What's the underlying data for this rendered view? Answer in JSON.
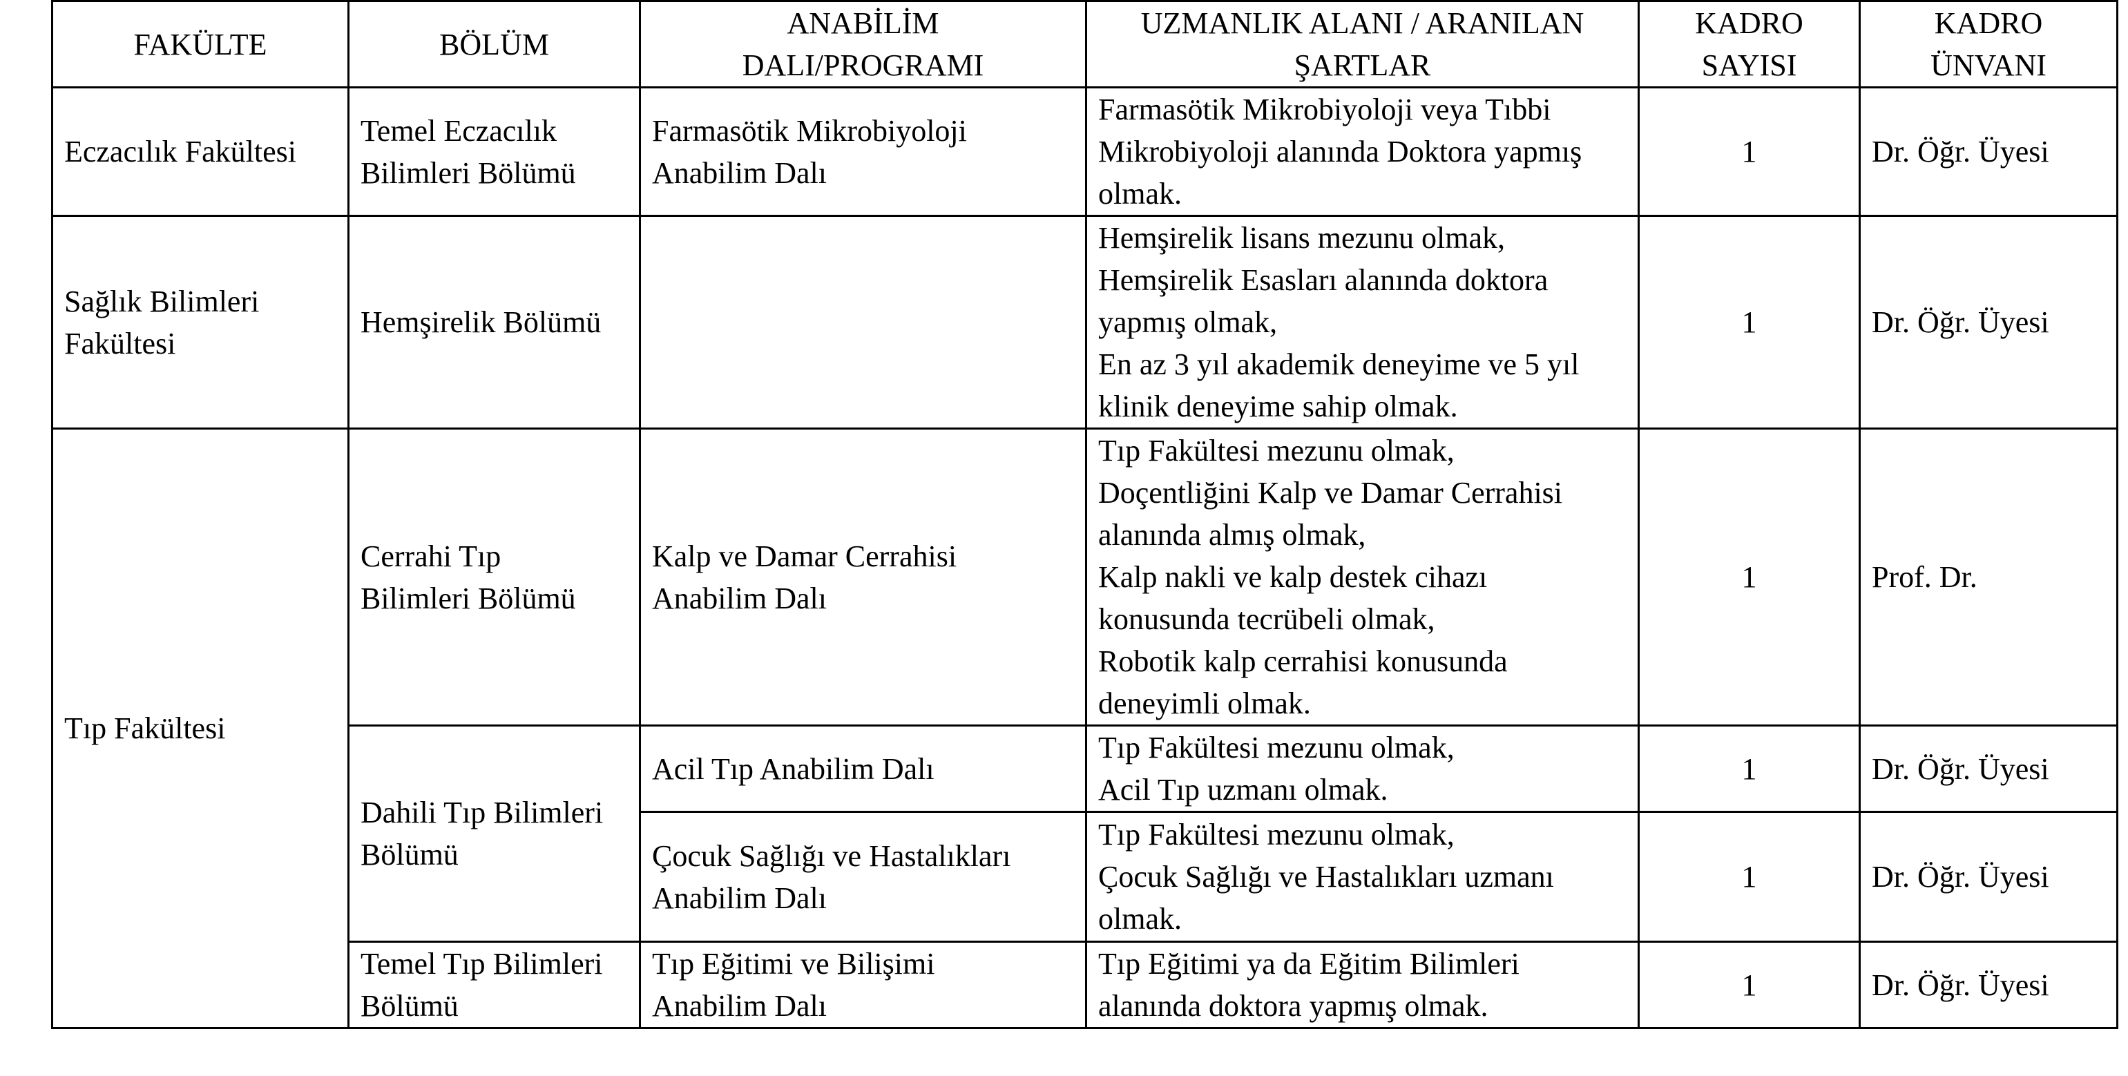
{
  "headers": [
    "FAKÜLTE",
    "BÖLÜM",
    "ANABİLİM DALI/PROGRAMI",
    "UZMANLIK ALANI / ARANILAN ŞARTLAR",
    "KADRO SAYISI",
    "KADRO ÜNVANI"
  ],
  "header_lines": {
    "anabilim": [
      "ANABİLİM",
      "DALI/PROGRAMI"
    ],
    "uzmanlik": [
      "UZMANLIK ALANI / ARANILAN",
      "ŞARTLAR"
    ],
    "sayi": [
      "KADRO",
      "SAYISI"
    ],
    "unvan": [
      "KADRO",
      "ÜNVANI"
    ]
  },
  "rows": [
    {
      "fakulte": [
        "Eczacılık Fakültesi"
      ],
      "bolum": [
        "Temel Eczacılık",
        "Bilimleri Bölümü"
      ],
      "anabilim": [
        "Farmasötik Mikrobiyoloji",
        "Anabilim Dalı"
      ],
      "sartlar": [
        "Farmasötik Mikrobiyoloji veya Tıbbi",
        "Mikrobiyoloji alanında Doktora yapmış",
        "olmak."
      ],
      "sayi": "1",
      "unvan": "Dr. Öğr. Üyesi"
    },
    {
      "fakulte": [
        "Sağlık Bilimleri",
        "Fakültesi"
      ],
      "bolum": [
        "Hemşirelik Bölümü"
      ],
      "anabilim": [],
      "sartlar": [
        "Hemşirelik lisans mezunu olmak,",
        "Hemşirelik Esasları alanında doktora",
        "yapmış olmak,",
        "En az 3 yıl akademik deneyime ve 5 yıl",
        "klinik deneyime sahip olmak."
      ],
      "sayi": "1",
      "unvan": "Dr. Öğr. Üyesi"
    },
    {
      "fakulte": [
        "Tıp Fakültesi"
      ],
      "bolum": [
        "Cerrahi Tıp",
        "Bilimleri Bölümü"
      ],
      "anabilim": [
        "Kalp ve Damar Cerrahisi",
        "Anabilim Dalı"
      ],
      "sartlar": [
        "Tıp Fakültesi mezunu olmak,",
        "Doçentliğini Kalp ve Damar Cerrahisi",
        "alanında almış olmak,",
        "Kalp nakli ve kalp destek cihazı",
        "konusunda tecrübeli olmak,",
        "Robotik kalp cerrahisi konusunda",
        "deneyimli olmak."
      ],
      "sayi": "1",
      "unvan": "Prof. Dr."
    },
    {
      "bolum": [
        "Dahili Tıp Bilimleri",
        "Bölümü"
      ],
      "anabilim": [
        "Acil Tıp Anabilim Dalı"
      ],
      "sartlar": [
        "Tıp Fakültesi mezunu olmak,",
        "Acil Tıp uzmanı olmak."
      ],
      "sayi": "1",
      "unvan": "Dr. Öğr. Üyesi"
    },
    {
      "anabilim": [
        "Çocuk Sağlığı ve Hastalıkları",
        "Anabilim Dalı"
      ],
      "sartlar": [
        "Tıp Fakültesi mezunu olmak,",
        "Çocuk Sağlığı ve Hastalıkları uzmanı",
        "olmak."
      ],
      "sayi": "1",
      "unvan": "Dr. Öğr. Üyesi"
    },
    {
      "bolum": [
        "Temel Tıp Bilimleri",
        "Bölümü"
      ],
      "anabilim": [
        "Tıp Eğitimi ve Bilişimi",
        "Anabilim Dalı"
      ],
      "sartlar": [
        "Tıp Eğitimi ya da Eğitim Bilimleri",
        "alanında doktora yapmış olmak."
      ],
      "sayi": "1",
      "unvan": "Dr. Öğr. Üyesi"
    }
  ]
}
